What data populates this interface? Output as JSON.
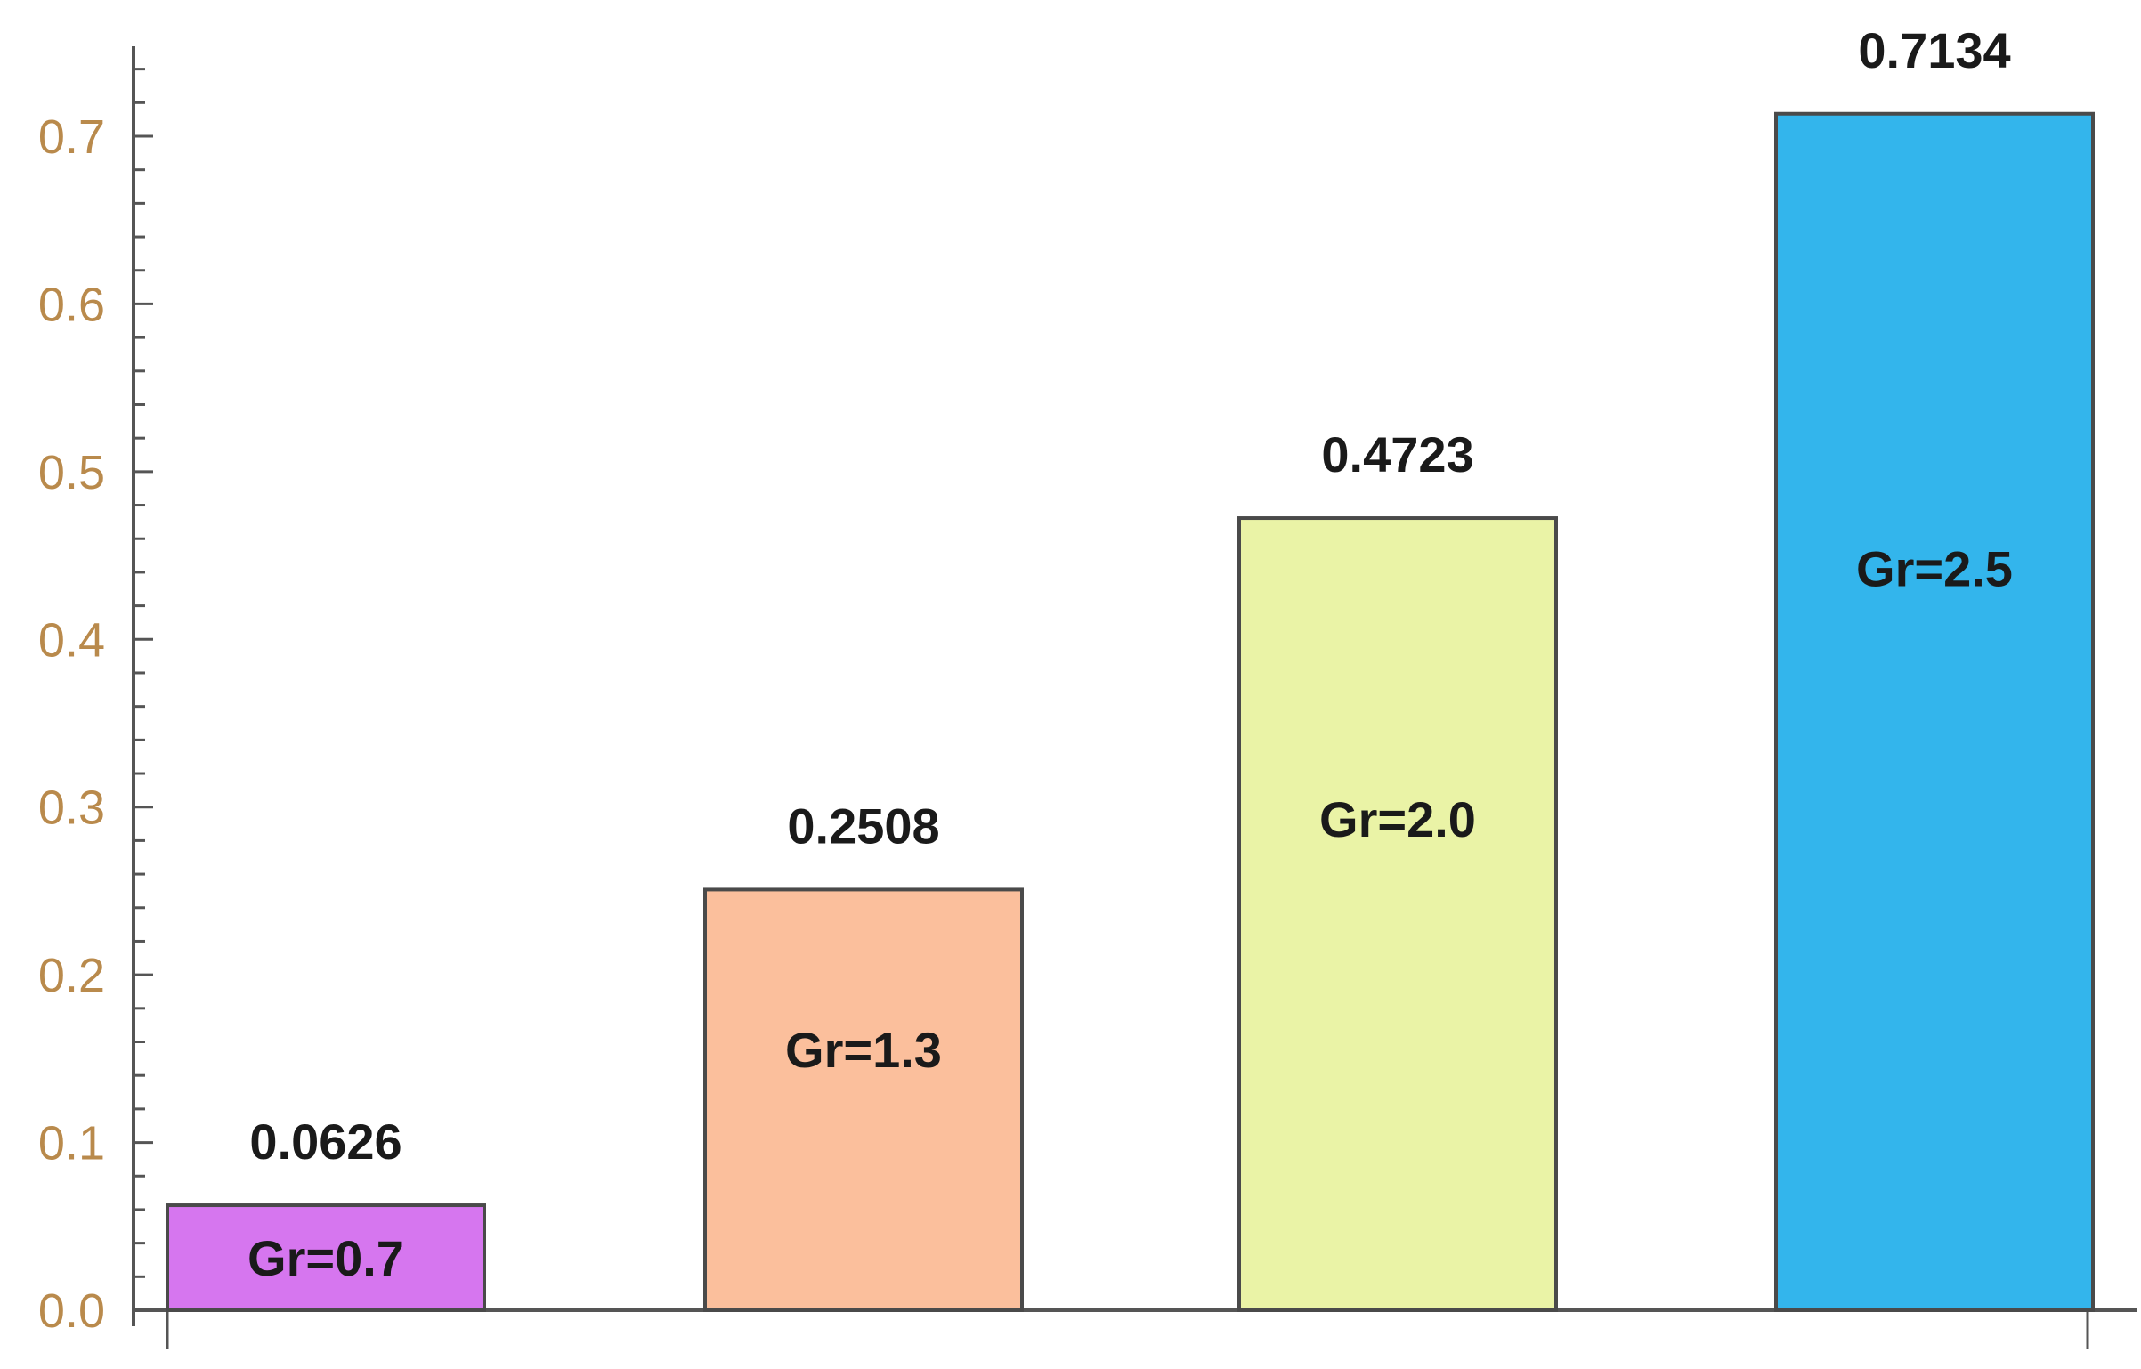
{
  "chart_data": {
    "type": "bar",
    "categories": [
      "Gr=0.7",
      "Gr=1.3",
      "Gr=2.0",
      "Gr=2.5"
    ],
    "values": [
      0.0626,
      0.2508,
      0.4723,
      0.7134
    ],
    "value_labels": [
      "0.0626",
      "0.2508",
      "0.4723",
      "0.7134"
    ],
    "colors": [
      "#d676ef",
      "#fbbf9c",
      "#eaf3a6",
      "#33b5ec"
    ],
    "title": "",
    "xlabel": "",
    "ylabel": "",
    "ylim": [
      0,
      0.75
    ],
    "yticks": [
      "0.0",
      "0.1",
      "0.2",
      "0.3",
      "0.4",
      "0.5",
      "0.6",
      "0.7"
    ],
    "grid": false,
    "legend": "none"
  }
}
